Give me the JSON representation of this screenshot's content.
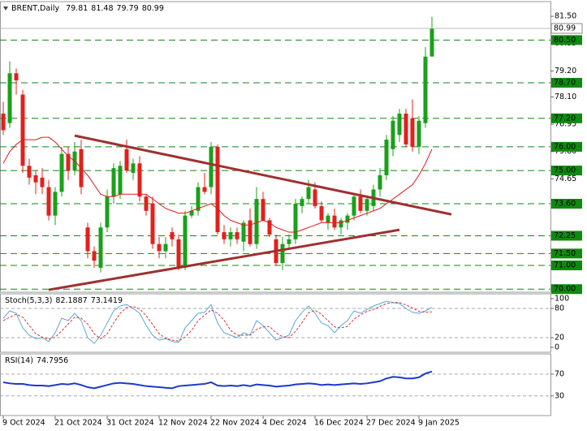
{
  "chart_data": [
    {
      "type": "candlestick",
      "title": "BRENT,Daily",
      "categories": [
        "9 Oct 2024",
        null,
        null,
        null,
        null,
        null,
        null,
        null,
        "21 Oct 2024",
        null,
        null,
        null,
        null,
        null,
        null,
        null,
        "31 Oct 2024",
        null,
        null,
        null,
        null,
        null,
        null,
        null,
        "12 Nov 2024",
        null,
        null,
        null,
        null,
        null,
        null,
        null,
        "22 Nov 2024",
        null,
        null,
        null,
        null,
        null,
        null,
        null,
        "4 Dec 2024",
        null,
        null,
        null,
        null,
        null,
        null,
        null,
        "16 Dec 2024",
        null,
        null,
        null,
        null,
        null,
        null,
        null,
        "27 Dec 2024",
        null,
        null,
        null,
        null,
        null,
        null,
        null,
        "9 Jan 2025",
        null,
        null
      ],
      "ohlc": [
        [
          77.4,
          77.9,
          76.5,
          76.7
        ],
        [
          77.0,
          79.6,
          76.8,
          79.1
        ],
        [
          79.1,
          79.3,
          78.2,
          78.8
        ],
        [
          78.2,
          78.4,
          74.9,
          75.2
        ],
        [
          75.2,
          75.5,
          74.4,
          74.7
        ],
        [
          74.8,
          75.0,
          74.0,
          74.5
        ],
        [
          74.7,
          75.1,
          74.0,
          74.3
        ],
        [
          74.3,
          74.6,
          72.9,
          73.1
        ],
        [
          73.1,
          74.3,
          72.7,
          74.1
        ],
        [
          74.1,
          76.0,
          73.9,
          75.7
        ],
        [
          75.7,
          76.0,
          74.6,
          75.0
        ],
        [
          75.0,
          76.2,
          74.8,
          75.8
        ],
        [
          75.9,
          76.3,
          74.0,
          74.3
        ],
        [
          72.6,
          72.8,
          71.3,
          71.6
        ],
        [
          71.6,
          71.8,
          70.9,
          71.2
        ],
        [
          70.9,
          72.8,
          70.7,
          72.6
        ],
        [
          72.6,
          74.2,
          72.4,
          73.9
        ],
        [
          73.9,
          75.3,
          73.6,
          75.1
        ],
        [
          74.0,
          75.4,
          73.8,
          75.2
        ],
        [
          75.9,
          76.3,
          74.9,
          75.0
        ],
        [
          74.9,
          75.5,
          74.6,
          75.3
        ],
        [
          75.3,
          75.6,
          73.7,
          73.9
        ],
        [
          73.9,
          74.0,
          73.1,
          73.3
        ],
        [
          73.6,
          73.9,
          71.7,
          71.9
        ],
        [
          71.9,
          72.2,
          71.3,
          71.6
        ],
        [
          71.6,
          72.2,
          71.3,
          71.9
        ],
        [
          72.4,
          72.6,
          71.8,
          72.1
        ],
        [
          72.1,
          72.3,
          70.8,
          70.9
        ],
        [
          70.9,
          73.3,
          70.8,
          73.1
        ],
        [
          73.1,
          73.5,
          73.0,
          73.3
        ],
        [
          73.3,
          74.5,
          73.1,
          74.3
        ],
        [
          74.3,
          74.9,
          74.0,
          74.1
        ],
        [
          74.3,
          76.2,
          74.0,
          76.0
        ],
        [
          76.0,
          76.1,
          72.3,
          72.4
        ],
        [
          72.4,
          72.7,
          71.9,
          72.1
        ],
        [
          72.1,
          72.6,
          71.8,
          72.4
        ],
        [
          72.4,
          72.6,
          71.9,
          72.1
        ],
        [
          72.0,
          72.9,
          71.6,
          72.8
        ],
        [
          72.9,
          73.4,
          71.8,
          71.9
        ],
        [
          71.9,
          74.3,
          71.7,
          73.8
        ],
        [
          73.8,
          74.1,
          72.9,
          72.9
        ],
        [
          72.9,
          73.0,
          72.2,
          72.3
        ],
        [
          72.1,
          72.3,
          71.0,
          71.1
        ],
        [
          71.1,
          72.2,
          70.8,
          71.9
        ],
        [
          71.9,
          72.3,
          71.7,
          72.1
        ],
        [
          72.1,
          73.8,
          71.9,
          73.6
        ],
        [
          73.5,
          73.9,
          73.2,
          73.8
        ],
        [
          73.8,
          74.6,
          73.6,
          74.3
        ],
        [
          74.2,
          74.5,
          73.4,
          73.5
        ],
        [
          73.5,
          73.7,
          72.8,
          72.9
        ],
        [
          72.8,
          73.2,
          72.5,
          73.1
        ],
        [
          73.1,
          73.4,
          72.5,
          72.6
        ],
        [
          72.6,
          73.0,
          72.3,
          72.9
        ],
        [
          72.8,
          73.2,
          72.5,
          73.1
        ],
        [
          73.1,
          74.0,
          72.9,
          73.9
        ],
        [
          73.9,
          74.2,
          73.2,
          73.3
        ],
        [
          73.3,
          73.9,
          73.1,
          73.8
        ],
        [
          73.5,
          74.4,
          73.3,
          74.2
        ],
        [
          74.2,
          75.1,
          73.9,
          74.8
        ],
        [
          74.8,
          76.5,
          74.6,
          76.3
        ],
        [
          75.9,
          77.3,
          75.6,
          77.1
        ],
        [
          76.5,
          77.6,
          76.2,
          77.4
        ],
        [
          77.4,
          77.6,
          76.0,
          76.1
        ],
        [
          77.2,
          78.0,
          75.8,
          76.0
        ],
        [
          76.0,
          77.3,
          75.7,
          77.1
        ],
        [
          77.0,
          80.2,
          76.8,
          79.8
        ],
        [
          79.81,
          81.48,
          79.79,
          80.99
        ]
      ],
      "up_color": "#1aa01a",
      "down_color": "#e3201c",
      "ma": {
        "color": "#e01818",
        "values": [
          75.3,
          75.8,
          76.1,
          76.3,
          76.3,
          76.3,
          76.4,
          76.4,
          76.2,
          75.9,
          75.6,
          75.4,
          75.1,
          74.8,
          74.4,
          74.0,
          73.9,
          73.9,
          74.0,
          74.0,
          74.0,
          74.0,
          74.0,
          73.8,
          73.6,
          73.4,
          73.3,
          73.2,
          73.2,
          73.3,
          73.4,
          73.5,
          73.6,
          73.4,
          73.1,
          72.9,
          72.8,
          72.7,
          72.7,
          72.8,
          72.9,
          72.8,
          72.6,
          72.5,
          72.4,
          72.4,
          72.5,
          72.6,
          72.7,
          72.8,
          72.8,
          72.8,
          72.8,
          72.9,
          73.0,
          73.1,
          73.2,
          73.3,
          73.4,
          73.6,
          73.8,
          74.0,
          74.2,
          74.4,
          74.8,
          75.3,
          75.9
        ]
      },
      "trendlines": [
        {
          "color": "#a03030",
          "x": [
            11,
            69
          ],
          "y": [
            76.47,
            73.15
          ]
        },
        {
          "color": "#a03030",
          "x": [
            7,
            61
          ],
          "y": [
            69.97,
            72.5
          ]
        }
      ],
      "levels": [
        {
          "value": 80.5,
          "label": "80.50"
        },
        {
          "value": 78.7,
          "label": "78.70"
        },
        {
          "value": 77.2,
          "label": "77.20"
        },
        {
          "value": 76,
          "label": "76.00"
        },
        {
          "value": 75,
          "label": "75.00"
        },
        {
          "value": 73.6,
          "label": "73.60"
        },
        {
          "value": 72.25,
          "label": "72.25"
        },
        {
          "value": 71.5,
          "label": "71.50"
        },
        {
          "value": 71,
          "label": "71.00"
        },
        {
          "value": 70,
          "label": "70.00"
        }
      ],
      "level_color": "#0f8a0f",
      "xlim": [
        -0.5,
        84.25
      ],
      "ylim": [
        69.87,
        82.12
      ],
      "yticks": [
        {
          "value": 81.5,
          "label": "81.50"
        },
        {
          "value": 80.35,
          "label": "80.35"
        },
        {
          "value": 79.2,
          "label": "79.20"
        },
        {
          "value": 78.1,
          "label": "78.10"
        },
        {
          "value": 76.95,
          "label": "76.95"
        },
        {
          "value": 75.8,
          "label": "75.80"
        },
        {
          "value": 74.65,
          "label": "74.65"
        }
      ]
    },
    {
      "type": "line",
      "title": "Stoch(5,3,3)",
      "xlim": [
        -0.5,
        84.25
      ],
      "ylim": [
        -10,
        110
      ],
      "yticks": [
        0,
        20,
        80,
        100
      ],
      "levels": [
        20,
        80
      ],
      "series": [
        {
          "color": "#5aa8dc",
          "dash": false,
          "values": [
            60,
            75,
            70,
            40,
            25,
            18,
            20,
            12,
            30,
            60,
            55,
            70,
            55,
            20,
            8,
            25,
            50,
            75,
            85,
            88,
            80,
            70,
            45,
            25,
            15,
            18,
            12,
            10,
            40,
            55,
            70,
            72,
            88,
            50,
            30,
            25,
            20,
            30,
            25,
            55,
            45,
            30,
            15,
            20,
            25,
            55,
            72,
            85,
            70,
            50,
            45,
            30,
            45,
            55,
            75,
            70,
            78,
            85,
            90,
            95,
            92,
            90,
            80,
            72,
            70,
            75,
            82.1887
          ]
        },
        {
          "color": "#e03030",
          "dash": true,
          "values": [
            55,
            62,
            68,
            62,
            45,
            28,
            21,
            17,
            21,
            34,
            48,
            62,
            60,
            48,
            28,
            18,
            28,
            50,
            70,
            82,
            84,
            79,
            65,
            47,
            28,
            19,
            15,
            13,
            21,
            35,
            55,
            66,
            77,
            70,
            56,
            35,
            25,
            25,
            25,
            37,
            42,
            43,
            30,
            22,
            20,
            33,
            51,
            71,
            76,
            68,
            55,
            42,
            40,
            43,
            58,
            67,
            74,
            78,
            84,
            90,
            92,
            92,
            87,
            81,
            74,
            72,
            73.1419
          ]
        }
      ]
    },
    {
      "type": "line",
      "title": "RSI(14)",
      "xlim": [
        -0.5,
        84.25
      ],
      "ylim": [
        -6,
        107
      ],
      "yticks": [
        30,
        70
      ],
      "levels": [
        30,
        70
      ],
      "series": [
        {
          "color": "#1c3acb",
          "dash": false,
          "values": [
            55,
            53,
            52,
            52,
            50,
            49,
            49,
            48,
            50,
            52,
            51,
            53,
            50,
            46,
            44,
            47,
            50,
            53,
            54,
            53,
            52,
            50,
            48,
            47,
            46,
            45,
            44,
            48,
            49,
            50,
            51,
            52,
            55,
            49,
            48,
            49,
            48,
            50,
            48,
            51,
            50,
            49,
            47,
            48,
            49,
            51,
            52,
            53,
            52,
            50,
            51,
            50,
            51,
            52,
            53,
            52,
            53,
            55,
            57,
            62,
            65,
            64,
            62,
            62,
            64,
            71,
            74.7956
          ]
        }
      ]
    }
  ]
}
